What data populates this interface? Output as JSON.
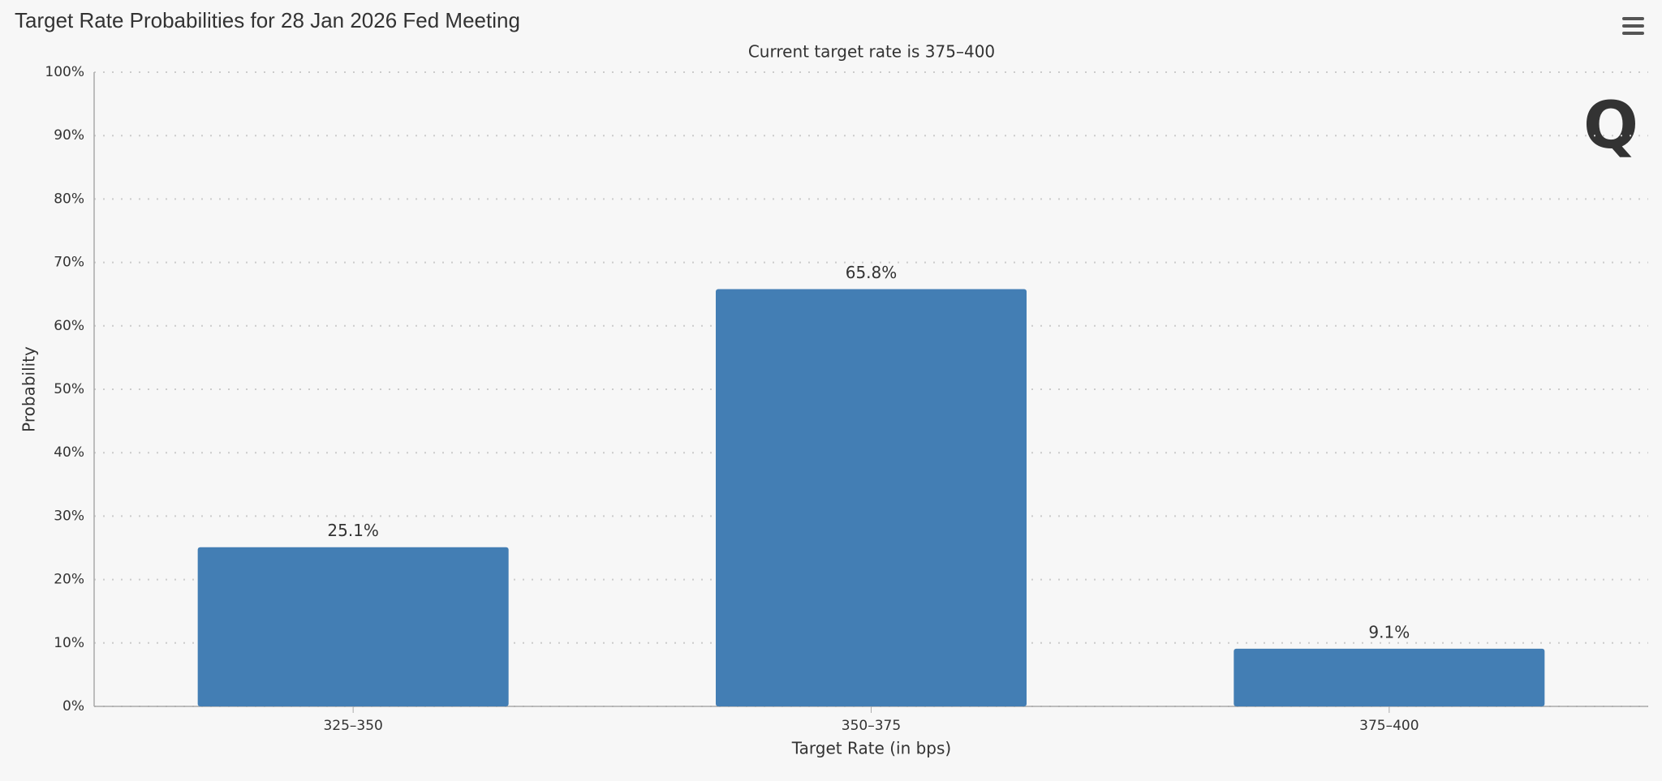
{
  "chart_data": {
    "type": "bar",
    "title": "Target Rate Probabilities for 28 Jan 2026 Fed Meeting",
    "subtitle": "Current target rate is 375–400",
    "x_label": "Target Rate (in bps)",
    "y_label": "Probability",
    "categories": [
      "325–350",
      "350–375",
      "375–400"
    ],
    "values": [
      25.1,
      65.8,
      9.1
    ],
    "value_labels": [
      "25.1%",
      "65.8%",
      "9.1%"
    ],
    "color": "#437eb4",
    "ylim": [
      0,
      100
    ],
    "yticks": [
      {
        "value": 0,
        "label": "0%"
      },
      {
        "value": 10,
        "label": "10%"
      },
      {
        "value": 20,
        "label": "20%"
      },
      {
        "value": 30,
        "label": "30%"
      },
      {
        "value": 40,
        "label": "40%"
      },
      {
        "value": 50,
        "label": "50%"
      },
      {
        "value": 60,
        "label": "60%"
      },
      {
        "value": 70,
        "label": "70%"
      },
      {
        "value": 80,
        "label": "80%"
      },
      {
        "value": 90,
        "label": "90%"
      },
      {
        "value": 100,
        "label": "100%"
      }
    ],
    "grid": true
  }
}
